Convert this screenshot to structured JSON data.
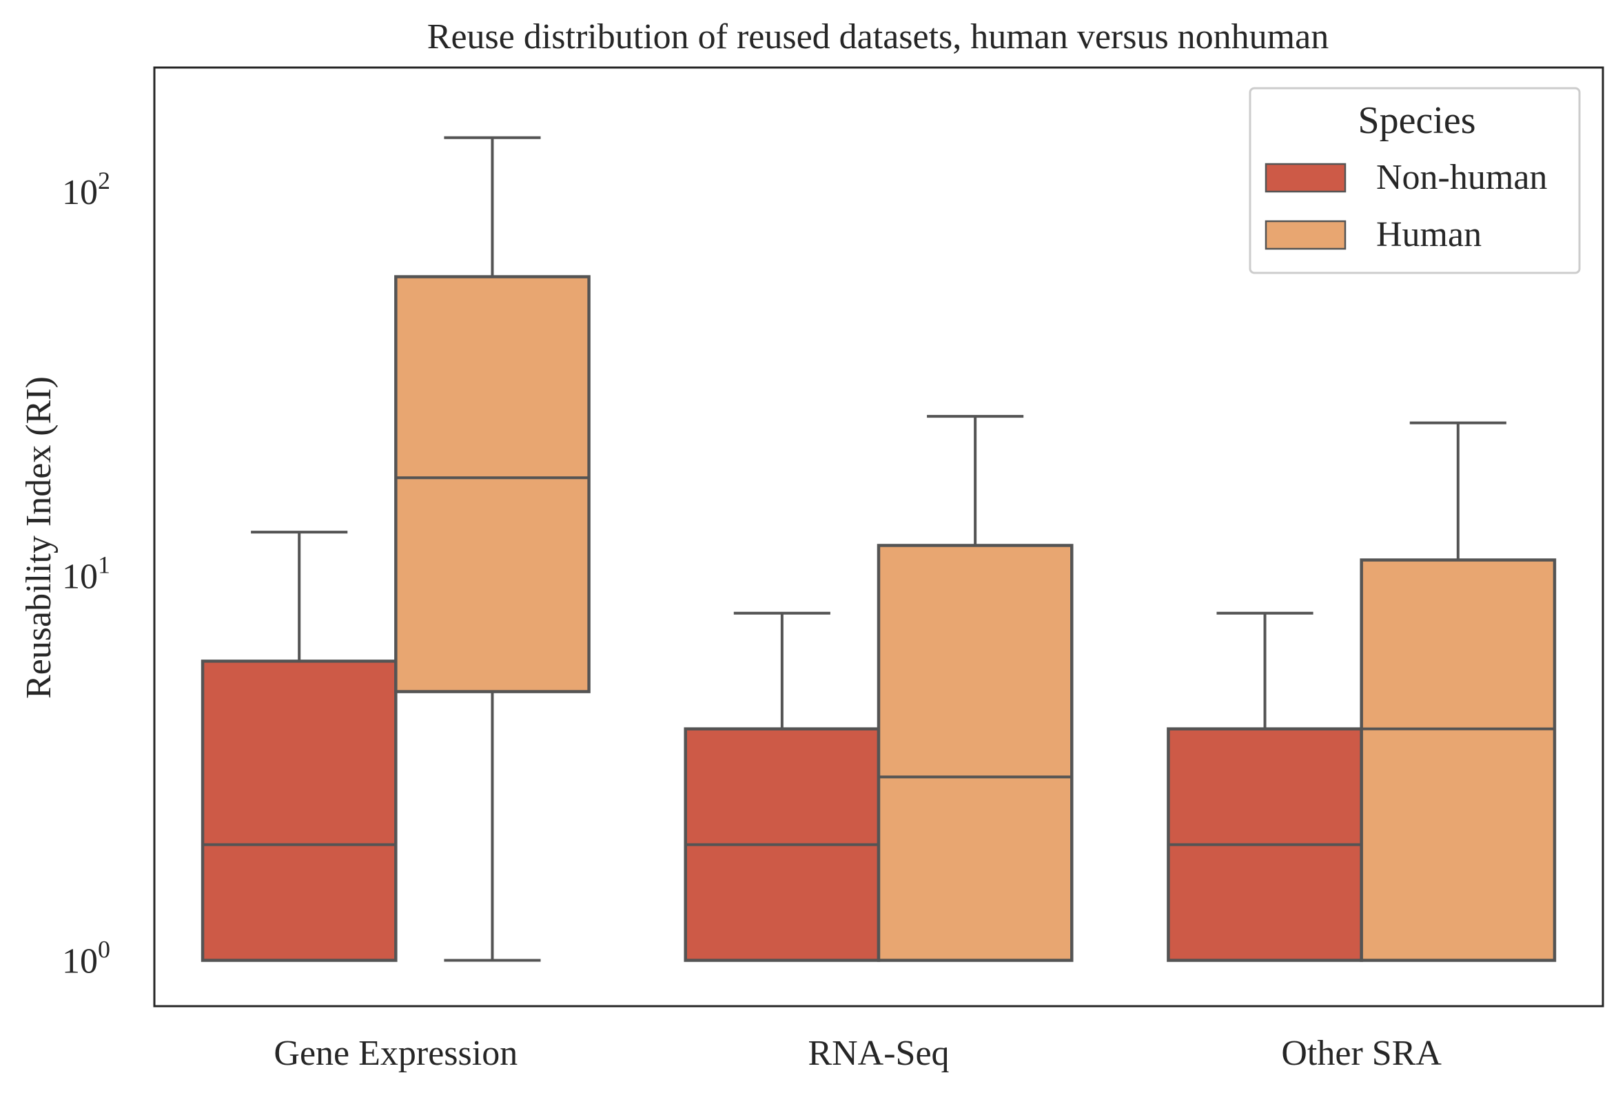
{
  "chart_data": {
    "type": "box",
    "title": "Reuse distribution of reused datasets, human versus nonhuman",
    "xlabel": "",
    "ylabel": "Reusability Index (RI)",
    "yscale": "log",
    "ylim": [
      0.76,
      210
    ],
    "yticks": [
      {
        "value": 1,
        "base": "10",
        "exp": "0"
      },
      {
        "value": 10,
        "base": "10",
        "exp": "1"
      },
      {
        "value": 100,
        "base": "10",
        "exp": "2"
      }
    ],
    "categories": [
      "Gene Expression",
      "RNA-Seq",
      "Other SRA"
    ],
    "series": [
      {
        "name": "Non-human",
        "color": "#cd5a47",
        "boxes": [
          {
            "whislo": 1,
            "q1": 1,
            "med": 2,
            "q3": 6,
            "whishi": 13
          },
          {
            "whislo": 1,
            "q1": 1,
            "med": 2,
            "q3": 4,
            "whishi": 8
          },
          {
            "whislo": 1,
            "q1": 1,
            "med": 2,
            "q3": 4,
            "whishi": 8
          }
        ]
      },
      {
        "name": "Human",
        "color": "#e8a671",
        "boxes": [
          {
            "whislo": 1,
            "q1": 5,
            "med": 18,
            "q3": 60,
            "whishi": 138
          },
          {
            "whislo": 1,
            "q1": 1,
            "med": 3,
            "q3": 12,
            "whishi": 26
          },
          {
            "whislo": 1,
            "q1": 1,
            "med": 4,
            "q3": 11,
            "whishi": 25
          }
        ]
      }
    ],
    "legend": {
      "title": "Species",
      "position": "top-right"
    },
    "grid": false,
    "line_color": "#545454",
    "frame_color": "#262626"
  }
}
